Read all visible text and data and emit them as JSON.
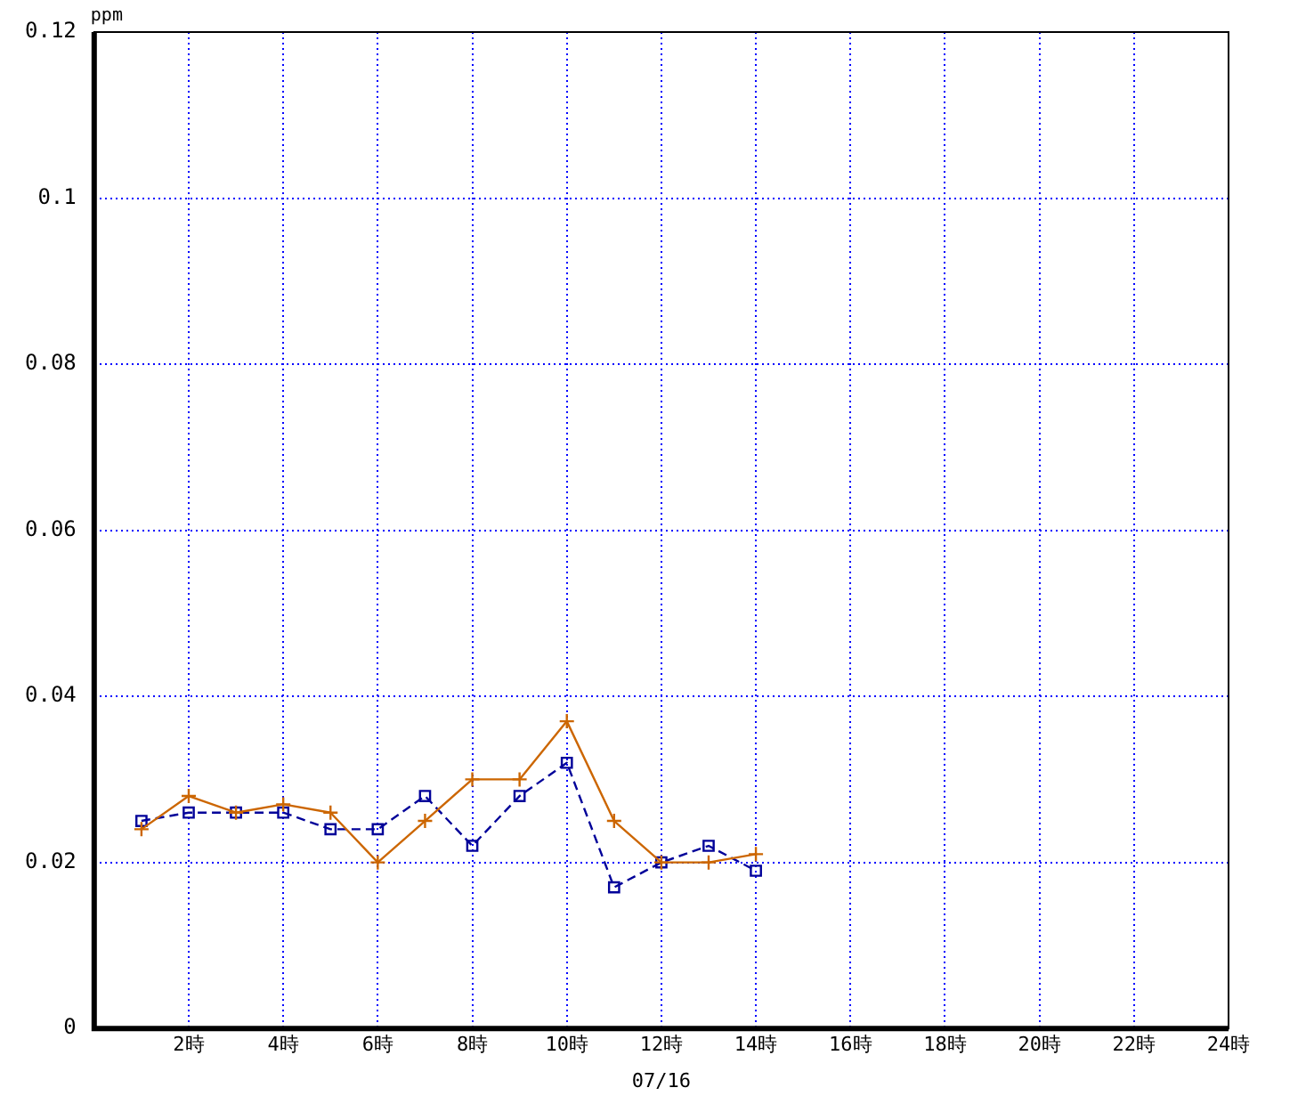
{
  "chart_data": {
    "type": "line",
    "ylabel": "ppm",
    "xlabel": "07/16",
    "x": [
      1,
      2,
      3,
      4,
      5,
      6,
      7,
      8,
      9,
      10,
      11,
      12,
      13,
      14
    ],
    "series": [
      {
        "color": "#cc6600",
        "marker": "cross",
        "line_style": "solid",
        "values": [
          0.024,
          0.028,
          0.026,
          0.027,
          0.026,
          0.02,
          0.025,
          0.03,
          0.03,
          0.037,
          0.025,
          0.02,
          0.02,
          0.021
        ]
      },
      {
        "color": "#000099",
        "marker": "square",
        "line_style": "dashed",
        "values": [
          0.025,
          0.026,
          0.026,
          0.026,
          0.024,
          0.024,
          0.028,
          0.022,
          0.028,
          0.032,
          0.017,
          0.02,
          0.022,
          0.019
        ]
      }
    ],
    "xlim": [
      0,
      24
    ],
    "xticks": [
      {
        "value": 2,
        "label": "2時"
      },
      {
        "value": 4,
        "label": "4時"
      },
      {
        "value": 6,
        "label": "6時"
      },
      {
        "value": 8,
        "label": "8時"
      },
      {
        "value": 10,
        "label": "10時"
      },
      {
        "value": 12,
        "label": "12時"
      },
      {
        "value": 14,
        "label": "14時"
      },
      {
        "value": 16,
        "label": "16時"
      },
      {
        "value": 18,
        "label": "18時"
      },
      {
        "value": 20,
        "label": "20時"
      },
      {
        "value": 22,
        "label": "22時"
      },
      {
        "value": 24,
        "label": "24時"
      }
    ],
    "ylim": [
      0,
      0.12
    ],
    "yticks": [
      0,
      0.02,
      0.04,
      0.06,
      0.08,
      0.1,
      0.12
    ],
    "grid": true,
    "legend": false
  }
}
